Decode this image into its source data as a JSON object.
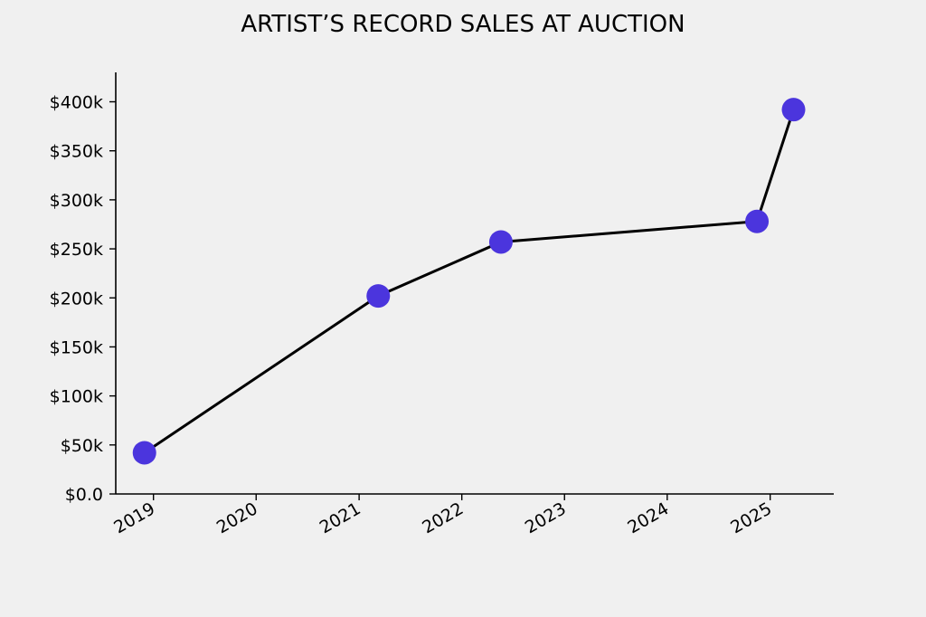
{
  "chart_data": {
    "type": "line",
    "title": "ARTIST’S RECORD SALES AT AUCTION",
    "xlabel": "",
    "ylabel": "",
    "x_axis_type": "date",
    "xlim": [
      "2018-08-20",
      "2025-08-15"
    ],
    "ylim": [
      0,
      430000
    ],
    "x_ticks": [
      "2019-01-01",
      "2020-01-01",
      "2021-01-01",
      "2022-01-01",
      "2023-01-01",
      "2024-01-01",
      "2025-01-01"
    ],
    "x_tick_labels": [
      "2019",
      "2020",
      "2021",
      "2022",
      "2023",
      "2024",
      "2025"
    ],
    "y_ticks": [
      0,
      50000,
      100000,
      150000,
      200000,
      250000,
      300000,
      350000,
      400000
    ],
    "y_tick_labels": [
      "$0.0",
      "$50k",
      "$100k",
      "$150k",
      "$200k",
      "$250k",
      "$300k",
      "$350k",
      "$400k"
    ],
    "grid": false,
    "series": [
      {
        "line_color": "#000000",
        "marker_color": "#4b35dd",
        "points": [
          {
            "x": "2018-11-30",
            "y": 42000
          },
          {
            "x": "2021-03-10",
            "y": 202000
          },
          {
            "x": "2022-05-20",
            "y": 257000
          },
          {
            "x": "2024-11-15",
            "y": 278000
          },
          {
            "x": "2025-03-25",
            "y": 392000
          }
        ]
      }
    ]
  }
}
